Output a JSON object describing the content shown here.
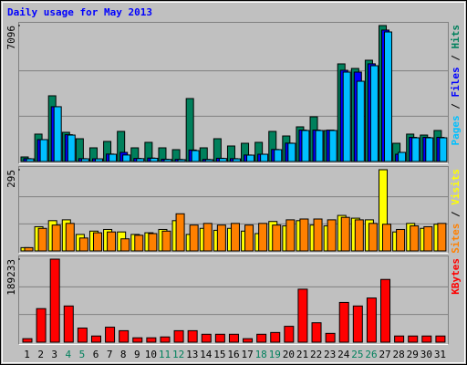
{
  "chart_data": [
    {
      "type": "bar",
      "title": "Daily usage for May 2013",
      "ylim": [
        0,
        7096
      ],
      "yticks": [
        7096
      ],
      "legend_separator": " / ",
      "series": [
        {
          "name": "Hits",
          "color": "#00805C",
          "values": [
            238,
            1430,
            3430,
            1524,
            1190,
            714,
            1048,
            1571,
            714,
            1000,
            714,
            619,
            3286,
            714,
            1190,
            810,
            952,
            1000,
            1571,
            1333,
            1810,
            2333,
            1619,
            5096,
            4857,
            5286,
            7096,
            952,
            1430,
            1381,
            1619
          ]
        },
        {
          "name": "Files",
          "color": "#0000FF",
          "values": [
            150,
            1143,
            2860,
            1400,
            150,
            140,
            390,
            476,
            160,
            180,
            120,
            110,
            600,
            110,
            170,
            150,
            340,
            380,
            630,
            960,
            1640,
            1640,
            1640,
            4762,
            4667,
            5100,
            6860,
            380,
            1260,
            1260,
            1260
          ]
        },
        {
          "name": "Pages",
          "color": "#00C0FF",
          "values": [
            140,
            1143,
            2860,
            1380,
            143,
            140,
            380,
            340,
            150,
            170,
            110,
            100,
            571,
            100,
            160,
            140,
            333,
            380,
            619,
            952,
            1619,
            1619,
            1619,
            4667,
            4190,
            5000,
            6762,
            476,
            1238,
            1238,
            1238
          ]
        }
      ]
    },
    {
      "type": "bar",
      "ylim": [
        0,
        295
      ],
      "yticks": [
        295
      ],
      "legend_separator": " / ",
      "series": [
        {
          "name": "Visits",
          "color": "#FFFF00",
          "values": [
            12,
            88,
            110,
            113,
            60,
            72,
            78,
            69,
            60,
            66,
            78,
            110,
            60,
            82,
            75,
            82,
            72,
            63,
            107,
            91,
            110,
            94,
            91,
            129,
            119,
            113,
            295,
            69,
            100,
            82,
            97
          ]
        },
        {
          "name": "Sites",
          "color": "#FF8000",
          "values": [
            12,
            82,
            94,
            100,
            47,
            66,
            69,
            44,
            57,
            63,
            72,
            135,
            94,
            100,
            94,
            100,
            94,
            100,
            94,
            113,
            116,
            116,
            113,
            122,
            113,
            100,
            97,
            78,
            91,
            88,
            100
          ]
        }
      ]
    },
    {
      "type": "bar",
      "ylim": [
        0,
        189233
      ],
      "yticks": [
        189233
      ],
      "categories": [
        "1",
        "2",
        "3",
        "4",
        "5",
        "6",
        "7",
        "8",
        "9",
        "10",
        "11",
        "12",
        "13",
        "14",
        "15",
        "16",
        "17",
        "18",
        "19",
        "20",
        "21",
        "22",
        "23",
        "24",
        "25",
        "26",
        "27",
        "28",
        "29",
        "30",
        "31"
      ],
      "category_colors": [
        "#000000",
        "#000000",
        "#000000",
        "#00805C",
        "#00805C",
        "#000000",
        "#000000",
        "#000000",
        "#000000",
        "#000000",
        "#00805C",
        "#00805C",
        "#000000",
        "#000000",
        "#000000",
        "#000000",
        "#000000",
        "#00805C",
        "#00805C",
        "#000000",
        "#000000",
        "#000000",
        "#000000",
        "#000000",
        "#00805C",
        "#00805C",
        "#000000",
        "#000000",
        "#000000",
        "#000000",
        "#000000"
      ],
      "series": [
        {
          "name": "KBytes",
          "color": "#FF0000",
          "values": [
            8000,
            76500,
            189233,
            82500,
            32200,
            14100,
            34200,
            26200,
            10000,
            10000,
            12000,
            26200,
            26200,
            18100,
            18100,
            18100,
            8000,
            18100,
            22100,
            36200,
            120800,
            44300,
            20100,
            90600,
            82500,
            100700,
            143000,
            14100,
            14100,
            14100,
            14100
          ]
        }
      ]
    }
  ]
}
